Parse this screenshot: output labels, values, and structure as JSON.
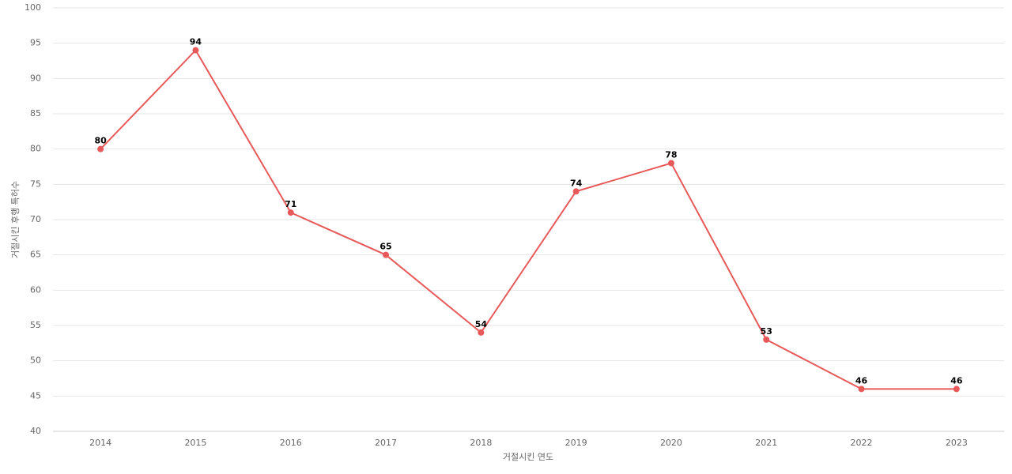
{
  "chart_data": {
    "type": "line",
    "x_label": "거절시킨 연도",
    "y_label": "거절시킨 후행 특허수",
    "categories": [
      "2014",
      "2015",
      "2016",
      "2017",
      "2018",
      "2019",
      "2020",
      "2021",
      "2022",
      "2023"
    ],
    "series": [
      {
        "name": "거절시킨 후행 특허수",
        "color": "#e85a5a",
        "values": [
          80,
          94,
          71,
          65,
          54,
          74,
          78,
          53,
          46,
          46
        ]
      }
    ],
    "ylim": [
      40,
      100
    ],
    "yticks": [
      40,
      45,
      50,
      55,
      60,
      65,
      70,
      75,
      80,
      85,
      90,
      95,
      100
    ],
    "grid": true
  }
}
